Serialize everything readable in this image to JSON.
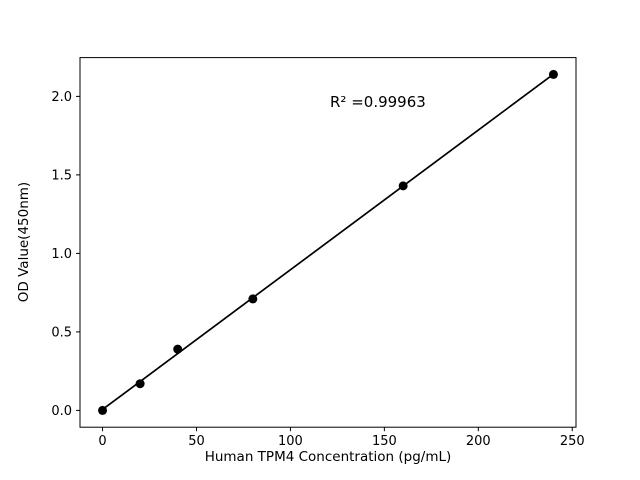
{
  "chart_data": {
    "type": "scatter",
    "title": "",
    "xlabel": "Human TPM4 Concentration (pg/mL)",
    "ylabel": "OD Value(450nm)",
    "annotation": "R² =0.99963",
    "x": [
      0,
      20,
      40,
      80,
      160,
      240
    ],
    "y": [
      0.0,
      0.17,
      0.39,
      0.71,
      1.43,
      2.14
    ],
    "fit": "linear",
    "xlim": [
      -12,
      252
    ],
    "ylim": [
      -0.107,
      2.247
    ],
    "xticks": [
      0,
      50,
      100,
      150,
      200,
      250
    ],
    "yticks": [
      0.0,
      0.5,
      1.0,
      1.5,
      2.0
    ],
    "ytick_decimals": 1,
    "point_color": "#000000",
    "line_color": "#000000",
    "background_color": "#ffffff",
    "grid": false,
    "legend": null
  }
}
